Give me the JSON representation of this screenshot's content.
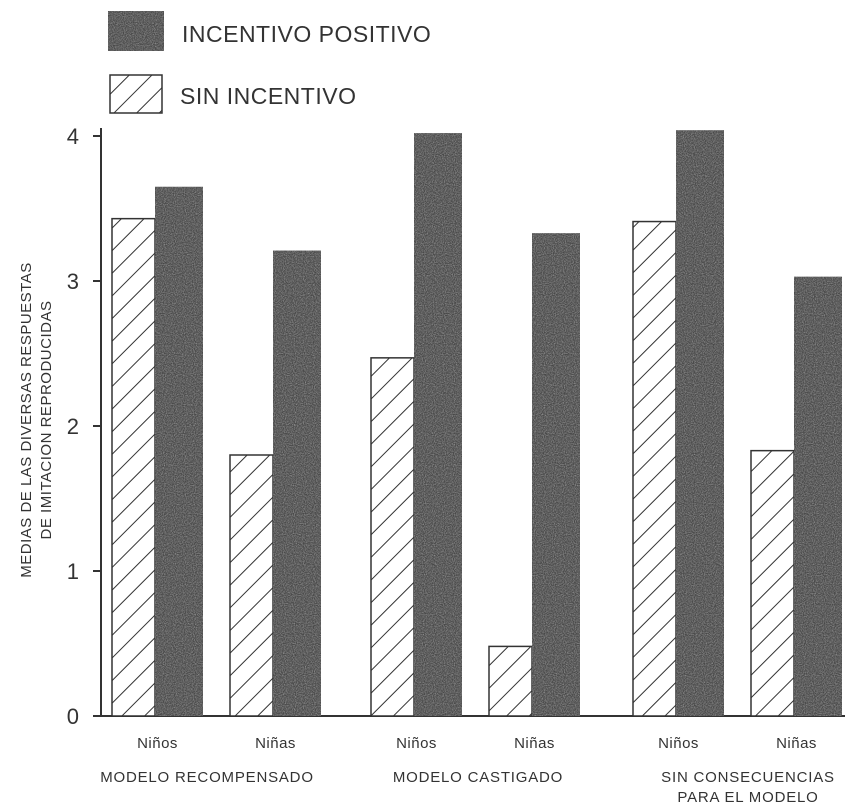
{
  "legend": {
    "positive_label": "INCENTIVO POSITIVO",
    "none_label": "SIN INCENTIVO"
  },
  "colors": {
    "solid_bar": "#4a4a4a",
    "hatch_stroke": "#333333",
    "axis": "#333333"
  },
  "chart_data": {
    "type": "bar",
    "title": "",
    "ylabel": [
      "MEDIAS DE LAS DIVERSAS RESPUESTAS",
      "DE IMITACION REPRODUCIDAS"
    ],
    "xlabel": "",
    "ylim": [
      0,
      4
    ],
    "yticks": [
      "0",
      "1",
      "2",
      "3",
      "4"
    ],
    "groups": [
      {
        "label": [
          "MODELO RECOMPENSADO"
        ],
        "categories": [
          "Niños",
          "Niñas"
        ]
      },
      {
        "label": [
          "MODELO CASTIGADO"
        ],
        "categories": [
          "Niños",
          "Niñas"
        ]
      },
      {
        "label": [
          "SIN CONSECUENCIAS",
          "PARA EL MODELO"
        ],
        "categories": [
          "Niños",
          "Niñas"
        ]
      }
    ],
    "categories": [
      "Niños",
      "Niñas",
      "Niños",
      "Niñas",
      "Niños",
      "Niñas"
    ],
    "series": [
      {
        "name": "SIN INCENTIVO",
        "pattern": "hatched",
        "values": [
          3.43,
          1.8,
          2.47,
          0.48,
          3.41,
          1.83
        ]
      },
      {
        "name": "INCENTIVO POSITIVO",
        "pattern": "solid",
        "values": [
          3.65,
          3.21,
          4.02,
          3.33,
          4.04,
          3.03
        ]
      }
    ],
    "legend_position": "top-left",
    "grid": false
  }
}
